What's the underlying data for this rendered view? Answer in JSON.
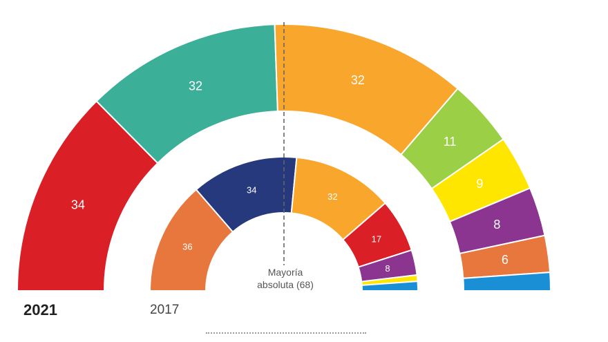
{
  "chart_data": [
    {
      "type": "pie",
      "subtype": "parliament-semicircle",
      "label": "2021",
      "seats": [
        34,
        32,
        32,
        11,
        9,
        8,
        6,
        3
      ],
      "labels": [
        "34",
        "32",
        "32",
        "11",
        "9",
        "8",
        "6",
        ""
      ],
      "colors": [
        "#da1f26",
        "#3caf98",
        "#f9a62c",
        "#9bcf45",
        "#ffe600",
        "#8b3590",
        "#e8773e",
        "#1a8fd6"
      ]
    },
    {
      "type": "pie",
      "subtype": "parliament-semicircle",
      "label": "2017",
      "seats": [
        36,
        34,
        32,
        17,
        8,
        2,
        3
      ],
      "labels": [
        "36",
        "34",
        "32",
        "17",
        "8",
        "",
        ""
      ],
      "colors": [
        "#e8773e",
        "#26397c",
        "#f9a62c",
        "#da1f26",
        "#8b3590",
        "#ffe600",
        "#1a8fd6"
      ]
    }
  ],
  "majority_line": {
    "text_line1": "Mayoría",
    "text_line2": "absoluta (68)",
    "value": 68
  },
  "year_labels": {
    "outer": "2021",
    "inner": "2017"
  }
}
